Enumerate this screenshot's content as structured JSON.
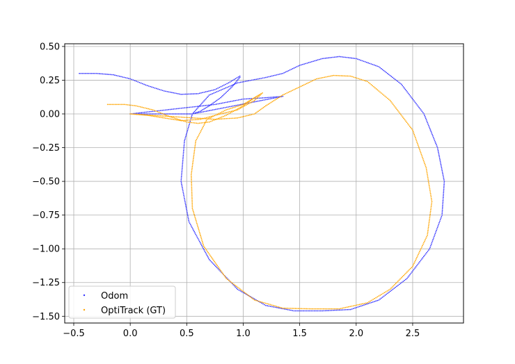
{
  "chart_data": {
    "type": "scatter",
    "title": "",
    "xlabel": "",
    "ylabel": "",
    "xlim": [
      -0.58,
      2.95
    ],
    "ylim": [
      -1.55,
      0.52
    ],
    "xticks": [
      -0.5,
      0.0,
      0.5,
      1.0,
      1.5,
      2.0,
      2.5
    ],
    "xtick_labels": [
      "−0.5",
      "0.0",
      "0.5",
      "1.0",
      "1.5",
      "2.0",
      "2.5"
    ],
    "yticks": [
      0.5,
      0.25,
      0.0,
      -0.25,
      -0.5,
      -0.75,
      -1.0,
      -1.25,
      -1.5
    ],
    "ytick_labels": [
      "0.50",
      "0.25",
      "0.00",
      "−0.25",
      "−0.50",
      "−0.75",
      "−1.00",
      "−1.25",
      "−1.50"
    ],
    "grid": true,
    "legend_position": "lower-left",
    "series": [
      {
        "name": "Odom",
        "color": "#3333ff",
        "marker": "dot",
        "points": [
          [
            -0.45,
            0.3
          ],
          [
            -0.3,
            0.3
          ],
          [
            -0.15,
            0.29
          ],
          [
            0.0,
            0.26
          ],
          [
            0.15,
            0.21
          ],
          [
            0.3,
            0.17
          ],
          [
            0.45,
            0.145
          ],
          [
            0.6,
            0.15
          ],
          [
            0.75,
            0.18
          ],
          [
            0.87,
            0.23
          ],
          [
            0.97,
            0.28
          ],
          [
            0.97,
            0.27
          ],
          [
            0.9,
            0.2
          ],
          [
            0.8,
            0.12
          ],
          [
            0.7,
            0.06
          ],
          [
            0.62,
            0.02
          ],
          [
            0.55,
            0.0
          ],
          [
            0.4,
            0.0
          ],
          [
            0.25,
            0.0
          ],
          [
            0.1,
            0.0
          ],
          [
            0.0,
            0.0
          ],
          [
            0.75,
            0.07
          ],
          [
            1.0,
            0.11
          ],
          [
            1.2,
            0.12
          ],
          [
            1.35,
            0.13
          ],
          [
            0.55,
            0.0
          ],
          [
            0.7,
            0.14
          ],
          [
            0.95,
            0.23
          ],
          [
            1.2,
            0.27
          ],
          [
            1.35,
            0.3
          ],
          [
            1.5,
            0.36
          ],
          [
            1.7,
            0.41
          ],
          [
            1.85,
            0.425
          ],
          [
            2.0,
            0.41
          ],
          [
            2.2,
            0.35
          ],
          [
            2.4,
            0.22
          ],
          [
            2.6,
            0.0
          ],
          [
            2.72,
            -0.25
          ],
          [
            2.78,
            -0.5
          ],
          [
            2.76,
            -0.75
          ],
          [
            2.65,
            -1.0
          ],
          [
            2.45,
            -1.22
          ],
          [
            2.2,
            -1.38
          ],
          [
            1.95,
            -1.45
          ],
          [
            1.7,
            -1.46
          ],
          [
            1.45,
            -1.46
          ],
          [
            1.2,
            -1.42
          ],
          [
            0.95,
            -1.3
          ],
          [
            0.7,
            -1.08
          ],
          [
            0.52,
            -0.8
          ],
          [
            0.45,
            -0.5
          ],
          [
            0.48,
            -0.2
          ],
          [
            0.55,
            0.0
          ]
        ]
      },
      {
        "name": "OptiTrack (GT)",
        "color": "#ffa500",
        "marker": "dot",
        "points": [
          [
            -0.2,
            0.07
          ],
          [
            -0.05,
            0.07
          ],
          [
            0.05,
            0.06
          ],
          [
            0.2,
            0.03
          ],
          [
            0.35,
            -0.02
          ],
          [
            0.5,
            -0.06
          ],
          [
            0.6,
            -0.07
          ],
          [
            0.7,
            -0.06
          ],
          [
            0.85,
            -0.01
          ],
          [
            1.0,
            0.06
          ],
          [
            1.1,
            0.12
          ],
          [
            1.17,
            0.155
          ],
          [
            1.1,
            0.1
          ],
          [
            0.95,
            0.03
          ],
          [
            0.8,
            0.0
          ],
          [
            0.62,
            -0.04
          ],
          [
            0.45,
            -0.05
          ],
          [
            0.3,
            -0.03
          ],
          [
            0.15,
            -0.01
          ],
          [
            0.0,
            0.0
          ],
          [
            0.75,
            -0.04
          ],
          [
            0.95,
            -0.03
          ],
          [
            1.1,
            0.0
          ],
          [
            1.2,
            0.06
          ],
          [
            1.35,
            0.14
          ],
          [
            1.5,
            0.2
          ],
          [
            1.65,
            0.26
          ],
          [
            1.8,
            0.285
          ],
          [
            1.95,
            0.28
          ],
          [
            2.1,
            0.24
          ],
          [
            2.3,
            0.1
          ],
          [
            2.5,
            -0.12
          ],
          [
            2.62,
            -0.4
          ],
          [
            2.67,
            -0.65
          ],
          [
            2.63,
            -0.9
          ],
          [
            2.5,
            -1.13
          ],
          [
            2.3,
            -1.3
          ],
          [
            2.1,
            -1.4
          ],
          [
            1.85,
            -1.445
          ],
          [
            1.6,
            -1.445
          ],
          [
            1.35,
            -1.44
          ],
          [
            1.1,
            -1.38
          ],
          [
            0.85,
            -1.22
          ],
          [
            0.65,
            -0.98
          ],
          [
            0.55,
            -0.7
          ],
          [
            0.54,
            -0.45
          ],
          [
            0.58,
            -0.2
          ],
          [
            0.68,
            -0.04
          ],
          [
            0.85,
            0.03
          ],
          [
            1.0,
            0.07
          ],
          [
            1.17,
            0.155
          ]
        ]
      }
    ]
  }
}
